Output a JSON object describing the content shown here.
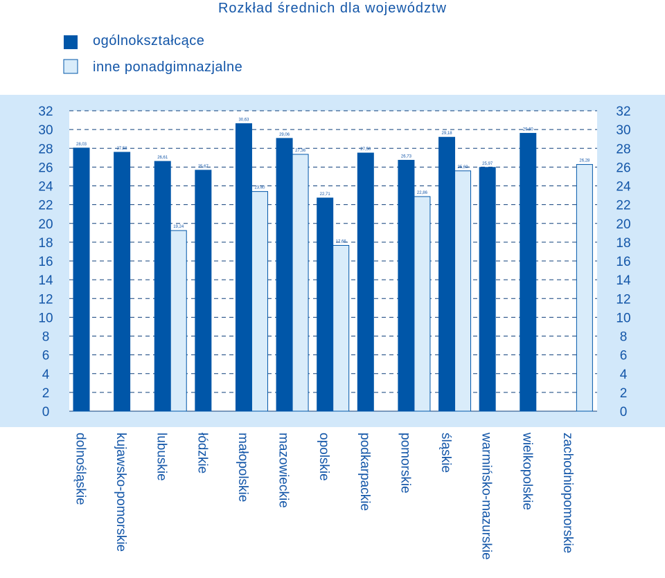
{
  "chart_data": {
    "type": "bar",
    "title": "Rozkład średnich dla województw",
    "xlabel": "",
    "ylabel": "",
    "ylim": [
      0,
      32
    ],
    "yticks": [
      0,
      2,
      4,
      6,
      8,
      10,
      12,
      14,
      16,
      18,
      20,
      22,
      24,
      26,
      28,
      30,
      32
    ],
    "grid": true,
    "legend_position": "top-left",
    "categories": [
      "dolnośląskie",
      "kujawsko-pomorskie",
      "lubuskie",
      "łódzkie",
      "małopolskie",
      "mazowieckie",
      "opolskie",
      "podkarpackie",
      "pomorskie",
      "śląskie",
      "warmińsko-mazurskie",
      "wielkopolskie",
      "zachodniopomorskie"
    ],
    "series": [
      {
        "name": "ogólnokształcące",
        "color": "#0056a8",
        "values": [
          28.03,
          27.58,
          26.61,
          25.67,
          30.63,
          29.06,
          22.71,
          27.5,
          26.73,
          29.18,
          25.97,
          29.6,
          null
        ],
        "labels": [
          "28,03",
          "27,58",
          "26,61",
          "25,67",
          "30,63",
          "29,06",
          "22,71",
          "27,50",
          "26,73",
          "29,18",
          "25,97",
          "29,60",
          ""
        ]
      },
      {
        "name": "inne ponadgimnazjalne",
        "color": "#d9ecfa",
        "values": [
          null,
          null,
          19.24,
          null,
          23.4,
          27.36,
          17.66,
          null,
          22.86,
          25.6,
          null,
          null,
          26.28
        ],
        "labels": [
          "",
          "",
          "19,24",
          "",
          "23,40",
          "27,36",
          "17,66",
          "",
          "22,86",
          "25,60",
          "",
          "",
          "26,28"
        ]
      }
    ]
  }
}
